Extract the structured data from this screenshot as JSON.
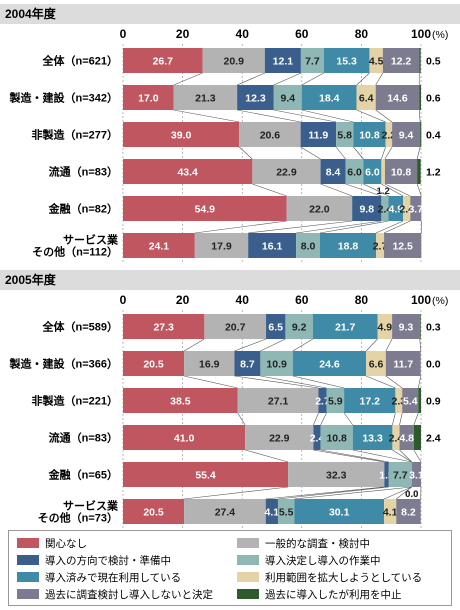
{
  "chart_data": [
    {
      "type": "bar",
      "stacked": true,
      "orientation": "horizontal",
      "title": "2004年度",
      "xlim": [
        0,
        100
      ],
      "ticks": [
        "0",
        "20",
        "40",
        "60",
        "80",
        "100"
      ],
      "unit": "(%)",
      "categories": [
        "全体（n=621）",
        "製造・建設（n=342）",
        "非製造（n=277）",
        "流通（n=83）",
        "金融（n=82）",
        "サービス業\nその他（n=112）"
      ],
      "series": [
        {
          "name": "関心なし",
          "values": [
            26.7,
            17.0,
            39.0,
            43.4,
            54.9,
            24.1
          ]
        },
        {
          "name": "一般的な調査・検討中",
          "values": [
            20.9,
            21.3,
            20.6,
            22.9,
            22.0,
            17.9
          ]
        },
        {
          "name": "導入の方向で検討・準備中",
          "values": [
            12.1,
            12.3,
            11.9,
            8.4,
            9.8,
            16.1
          ]
        },
        {
          "name": "導入決定し導入の作業中",
          "values": [
            7.7,
            9.4,
            5.8,
            6.0,
            2.4,
            8.0
          ]
        },
        {
          "name": "導入済みで現在利用している",
          "values": [
            15.3,
            18.4,
            10.8,
            6.0,
            4.9,
            18.8
          ]
        },
        {
          "name": "利用範囲を拡大しようとしている",
          "values": [
            4.5,
            6.4,
            2.2,
            1.2,
            2.4,
            2.7
          ]
        },
        {
          "name": "過去に調査検討し導入しないと決定",
          "values": [
            12.2,
            14.6,
            9.4,
            10.8,
            3.7,
            12.5
          ]
        },
        {
          "name": "過去に導入したが利用を中止",
          "values": [
            0.5,
            0.6,
            0.4,
            1.2,
            0.0,
            0.0
          ]
        }
      ],
      "right_labels": [
        "0.5",
        "0.6",
        "0.4",
        "1.2",
        "",
        ""
      ]
    },
    {
      "type": "bar",
      "stacked": true,
      "orientation": "horizontal",
      "title": "2005年度",
      "xlim": [
        0,
        100
      ],
      "ticks": [
        "0",
        "20",
        "40",
        "60",
        "80",
        "100"
      ],
      "unit": "(%)",
      "categories": [
        "全体（n=589）",
        "製造・建設（n=366）",
        "非製造（n=221）",
        "流通（n=83）",
        "金融（n=65）",
        "サービス業\nその他（n=73）"
      ],
      "series": [
        {
          "name": "関心なし",
          "values": [
            27.3,
            20.5,
            38.5,
            41.0,
            55.4,
            20.5
          ]
        },
        {
          "name": "一般的な調査・検討中",
          "values": [
            20.7,
            16.9,
            27.1,
            22.9,
            32.3,
            27.4
          ]
        },
        {
          "name": "導入の方向で検討・準備中",
          "values": [
            6.5,
            8.7,
            2.7,
            2.4,
            1.5,
            4.1
          ]
        },
        {
          "name": "導入決定し導入の作業中",
          "values": [
            9.2,
            10.9,
            5.9,
            10.8,
            7.7,
            5.5
          ]
        },
        {
          "name": "導入済みで現在利用している",
          "values": [
            21.7,
            24.6,
            17.2,
            13.3,
            0.0,
            30.1
          ]
        },
        {
          "name": "利用範囲を拡大しようとしている",
          "values": [
            4.9,
            6.6,
            2.3,
            2.4,
            0.0,
            4.1
          ]
        },
        {
          "name": "過去に調査検討し導入しないと決定",
          "values": [
            9.3,
            11.7,
            5.4,
            4.8,
            3.1,
            8.2
          ]
        },
        {
          "name": "過去に導入したが利用を中止",
          "values": [
            0.3,
            0.0,
            0.9,
            2.4,
            0.0,
            0.0
          ]
        }
      ],
      "right_labels": [
        "0.3",
        "0.0",
        "0.9",
        "2.4",
        "",
        ""
      ]
    }
  ],
  "legend": {
    "items": [
      {
        "label": "関心なし",
        "color": "#c0565f"
      },
      {
        "label": "一般的な調査・検討中",
        "color": "#b3b3b3"
      },
      {
        "label": "導入の方向で検討・準備中",
        "color": "#3a5f8c"
      },
      {
        "label": "導入決定し導入の作業中",
        "color": "#8fb8b5"
      },
      {
        "label": "導入済みで現在利用している",
        "color": "#3f8aa6"
      },
      {
        "label": "利用範囲を拡大しようとしている",
        "color": "#e3d3a6"
      },
      {
        "label": "過去に調査検討し導入しないと決定",
        "color": "#7d7b8f"
      },
      {
        "label": "過去に導入したが利用を中止",
        "color": "#2f5b2c"
      }
    ]
  }
}
